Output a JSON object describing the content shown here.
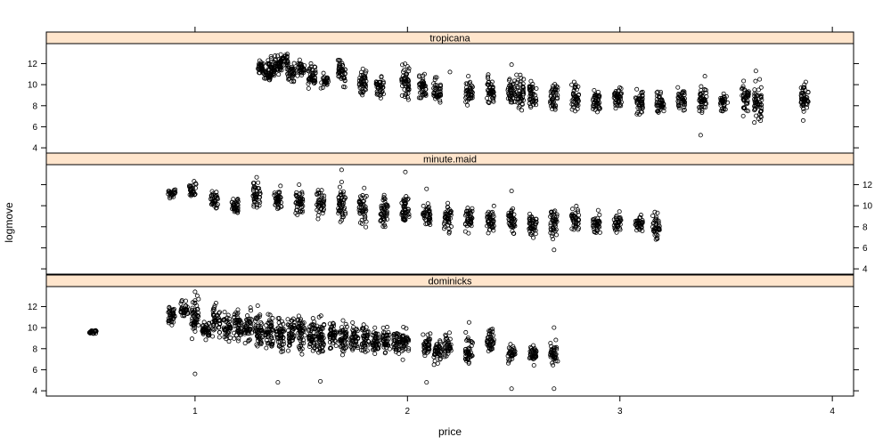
{
  "chart_data": {
    "type": "scatter",
    "xlabel": "price",
    "ylabel": "logmove",
    "xlim": [
      0.3,
      4.1
    ],
    "ylim": [
      3.5,
      13.9
    ],
    "x_ticks": [
      1,
      2,
      3,
      4
    ],
    "y_ticks": [
      4,
      6,
      8,
      10,
      12
    ],
    "grid": false,
    "layout": "three stacked panels sharing x axis, alternating y tick sides",
    "strip_color": "#ffe5cc",
    "point_color": "#000000",
    "panels": [
      {
        "name": "tropicana",
        "price_groups": [
          [
            1.31,
            11.6,
            0.3
          ],
          [
            1.34,
            10.9,
            0.2
          ],
          [
            1.36,
            11.6,
            0.5
          ],
          [
            1.39,
            11.8,
            0.4
          ],
          [
            1.42,
            12.4,
            0.3
          ],
          [
            1.45,
            11.2,
            0.4
          ],
          [
            1.5,
            11.5,
            0.4
          ],
          [
            1.55,
            11.0,
            0.6
          ],
          [
            1.61,
            10.3,
            0.3
          ],
          [
            1.69,
            11.3,
            0.6
          ],
          [
            1.79,
            10.2,
            0.6
          ],
          [
            1.87,
            9.8,
            0.5
          ],
          [
            1.99,
            10.2,
            0.8
          ],
          [
            2.07,
            9.6,
            0.6
          ],
          [
            2.14,
            9.2,
            0.6
          ],
          [
            2.29,
            9.3,
            0.6
          ],
          [
            2.39,
            9.6,
            0.7
          ],
          [
            2.49,
            9.2,
            0.6
          ],
          [
            2.53,
            9.2,
            0.7
          ],
          [
            2.59,
            9.0,
            0.6
          ],
          [
            2.69,
            8.8,
            0.6
          ],
          [
            2.79,
            8.9,
            0.6
          ],
          [
            2.89,
            8.6,
            0.6
          ],
          [
            2.99,
            8.7,
            0.6
          ],
          [
            3.09,
            8.4,
            0.6
          ],
          [
            3.19,
            8.3,
            0.6
          ],
          [
            3.29,
            8.6,
            0.5
          ],
          [
            3.39,
            8.6,
            0.7
          ],
          [
            3.49,
            8.3,
            0.4
          ],
          [
            3.59,
            8.6,
            0.6
          ],
          [
            3.65,
            8.3,
            0.8
          ],
          [
            3.87,
            8.6,
            0.8
          ]
        ],
        "outliers": [
          [
            3.38,
            5.2
          ],
          [
            3.4,
            10.8
          ],
          [
            3.64,
            11.3
          ],
          [
            1.79,
            11.5
          ],
          [
            2.49,
            11.9
          ],
          [
            2.2,
            11.2
          ],
          [
            3.08,
            7.2
          ]
        ]
      },
      {
        "name": "minute.maid",
        "price_groups": [
          [
            0.89,
            11.2,
            0.2
          ],
          [
            0.99,
            11.6,
            0.3
          ],
          [
            1.09,
            10.7,
            0.4
          ],
          [
            1.19,
            10.0,
            0.4
          ],
          [
            1.29,
            11.0,
            0.6
          ],
          [
            1.39,
            10.4,
            0.6
          ],
          [
            1.49,
            10.2,
            0.6
          ],
          [
            1.59,
            10.3,
            0.6
          ],
          [
            1.69,
            10.0,
            0.8
          ],
          [
            1.79,
            9.7,
            0.7
          ],
          [
            1.89,
            9.6,
            0.7
          ],
          [
            1.99,
            9.5,
            0.7
          ],
          [
            2.09,
            9.2,
            0.6
          ],
          [
            2.19,
            8.9,
            0.6
          ],
          [
            2.29,
            8.7,
            0.6
          ],
          [
            2.39,
            8.6,
            0.6
          ],
          [
            2.49,
            8.5,
            0.6
          ],
          [
            2.59,
            8.3,
            0.6
          ],
          [
            2.69,
            8.4,
            0.6
          ],
          [
            2.79,
            8.6,
            0.5
          ],
          [
            2.89,
            8.3,
            0.5
          ],
          [
            2.99,
            8.3,
            0.4
          ],
          [
            3.09,
            8.3,
            0.4
          ],
          [
            3.17,
            8.1,
            0.6
          ]
        ],
        "outliers": [
          [
            1.29,
            12.7
          ],
          [
            1.69,
            13.4
          ],
          [
            1.99,
            13.2
          ],
          [
            2.49,
            11.4
          ],
          [
            2.69,
            5.8
          ],
          [
            3.09,
            7.8
          ],
          [
            2.09,
            11.6
          ],
          [
            1.49,
            12.0
          ]
        ]
      },
      {
        "name": "dominicks",
        "price_groups": [
          [
            0.52,
            9.6,
            0.1
          ],
          [
            0.89,
            11.2,
            0.5
          ],
          [
            0.95,
            11.7,
            0.4
          ],
          [
            1.0,
            11.0,
            0.9
          ],
          [
            1.05,
            9.8,
            0.5
          ],
          [
            1.1,
            10.6,
            0.7
          ],
          [
            1.15,
            10.0,
            0.6
          ],
          [
            1.2,
            10.2,
            0.7
          ],
          [
            1.25,
            10.0,
            0.7
          ],
          [
            1.3,
            9.7,
            0.8
          ],
          [
            1.35,
            9.5,
            0.8
          ],
          [
            1.4,
            9.6,
            0.8
          ],
          [
            1.45,
            9.4,
            0.7
          ],
          [
            1.5,
            9.6,
            0.8
          ],
          [
            1.55,
            9.3,
            0.7
          ],
          [
            1.59,
            9.2,
            0.9
          ],
          [
            1.65,
            9.2,
            0.7
          ],
          [
            1.7,
            9.0,
            0.7
          ],
          [
            1.75,
            9.0,
            0.6
          ],
          [
            1.8,
            8.9,
            0.6
          ],
          [
            1.85,
            8.8,
            0.6
          ],
          [
            1.9,
            8.8,
            0.6
          ],
          [
            1.95,
            8.7,
            0.6
          ],
          [
            1.99,
            8.6,
            0.6
          ],
          [
            2.09,
            8.3,
            0.5
          ],
          [
            2.14,
            7.8,
            0.6
          ],
          [
            2.19,
            8.4,
            0.5
          ],
          [
            2.29,
            7.8,
            0.6
          ],
          [
            2.39,
            8.8,
            0.6
          ],
          [
            2.49,
            7.6,
            0.4
          ],
          [
            2.59,
            7.5,
            0.5
          ],
          [
            2.69,
            7.3,
            0.5
          ]
        ],
        "outliers": [
          [
            1.0,
            5.6
          ],
          [
            1.39,
            4.8
          ],
          [
            1.59,
            4.9
          ],
          [
            2.09,
            4.8
          ],
          [
            2.49,
            4.2
          ],
          [
            2.69,
            4.2
          ],
          [
            2.29,
            10.5
          ],
          [
            2.69,
            10.0
          ],
          [
            1.0,
            13.4
          ]
        ]
      }
    ]
  }
}
